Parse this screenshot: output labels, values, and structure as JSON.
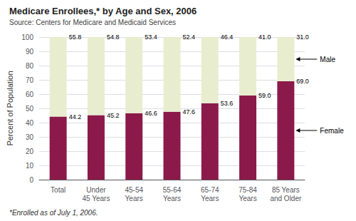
{
  "chart_data": {
    "type": "bar",
    "stacked": true,
    "title": "Medicare Enrollees,* by Age and Sex, 2006",
    "subtitle": "Source: Centers for Medicare and Medicaid Services",
    "footnote": "*Enrolled as of July 1, 2006.",
    "categories": [
      "Total",
      "Under\n45 Years",
      "45-54\nYears",
      "55-64\nYears",
      "65-74\nYears",
      "75-84\nYears",
      "85 Years\nand Older"
    ],
    "series": [
      {
        "name": "Female",
        "color": "#8B1A4A",
        "values": [
          44.2,
          45.2,
          46.6,
          47.6,
          53.6,
          59.0,
          69.0
        ],
        "value_labels": [
          "44.2",
          "45.2",
          "46.6",
          "47.6",
          "53.6",
          "59.0",
          "69.0"
        ]
      },
      {
        "name": "Male",
        "color": "#E8EDCF",
        "values": [
          55.8,
          54.8,
          53.4,
          52.4,
          46.4,
          41.0,
          31.0
        ],
        "value_labels": [
          "55.8",
          "54.8",
          "53.4",
          "52.4",
          "46.4",
          "41.0",
          "31.0"
        ]
      }
    ],
    "ylabel": "Percent of Population",
    "ylim": [
      0,
      100
    ],
    "yticks": [
      0,
      10,
      20,
      30,
      40,
      50,
      60,
      70,
      80,
      90,
      100
    ],
    "grid": true,
    "data_labels": true
  }
}
